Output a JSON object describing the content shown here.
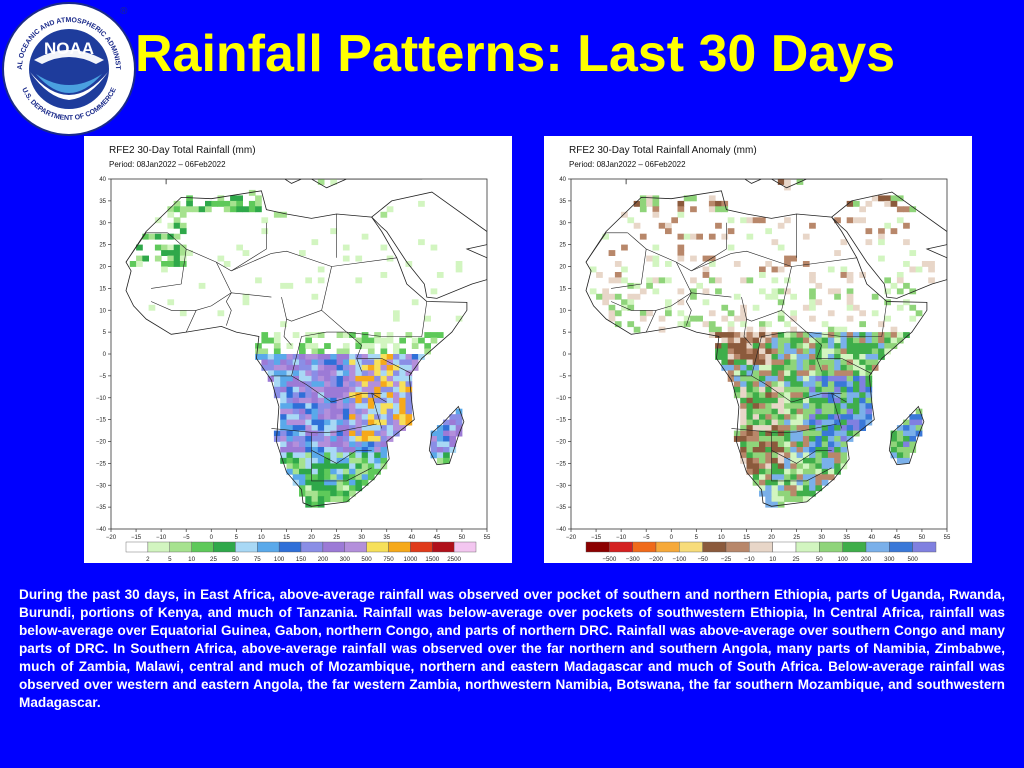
{
  "header": {
    "title": "Rainfall Patterns: Last 30 Days",
    "logo": {
      "center_text": "NOAA",
      "ring_text_top": "NATIONAL OCEANIC AND ATMOSPHERIC ADMINISTRATION",
      "ring_text_bottom": "U.S. DEPARTMENT OF COMMERCE",
      "registered_mark": "®"
    }
  },
  "maps": [
    {
      "title": "RFE2 30-Day Total Rainfall (mm)",
      "period": "Period: 08Jan2022 – 06Feb2022",
      "lat_ticks": [
        "40",
        "35",
        "30",
        "25",
        "20",
        "15",
        "10",
        "5",
        "0",
        "−5",
        "−10",
        "−15",
        "−20",
        "−25",
        "−30",
        "−35",
        "−40"
      ],
      "lon_ticks": [
        "−20",
        "−15",
        "−10",
        "−5",
        "0",
        "5",
        "10",
        "15",
        "20",
        "25",
        "30",
        "35",
        "40",
        "45",
        "50",
        "55"
      ],
      "legend_labels": [
        "2",
        "5",
        "10",
        "25",
        "50",
        "75",
        "100",
        "150",
        "200",
        "300",
        "500",
        "750",
        "1000",
        "1500",
        "2500"
      ],
      "legend_colors": [
        "#ffffff",
        "#d2f5c0",
        "#a6e28f",
        "#5ec95a",
        "#2fa84a",
        "#a8d8f5",
        "#5aa9ea",
        "#2f6fd8",
        "#8a8ee6",
        "#9c7ad6",
        "#b38fdb",
        "#f6e05a",
        "#f6a91a",
        "#e03a1a",
        "#b0101a",
        "#f3c6f0"
      ]
    },
    {
      "title": "RFE2 30-Day Total Rainfall Anomaly (mm)",
      "period": "Period: 08Jan2022 – 06Feb2022",
      "lat_ticks": [
        "40",
        "35",
        "30",
        "25",
        "20",
        "15",
        "10",
        "5",
        "0",
        "−5",
        "−10",
        "−15",
        "−20",
        "−25",
        "−30",
        "−35",
        "−40"
      ],
      "lon_ticks": [
        "−20",
        "−15",
        "−10",
        "−5",
        "0",
        "5",
        "10",
        "15",
        "20",
        "25",
        "30",
        "35",
        "40",
        "45",
        "50",
        "55"
      ],
      "legend_labels": [
        "−500",
        "−300",
        "−200",
        "−100",
        "−50",
        "−25",
        "−10",
        "10",
        "25",
        "50",
        "100",
        "200",
        "300",
        "500"
      ],
      "legend_colors": [
        "#8b0000",
        "#d42020",
        "#f06a1a",
        "#f6a93a",
        "#f7dc7a",
        "#8b5a3c",
        "#b8876a",
        "#e8d6c8",
        "#ffffff",
        "#d2f5c0",
        "#8fd47a",
        "#3fae4a",
        "#7ab0ea",
        "#3a78d8",
        "#8080e0"
      ]
    }
  ],
  "description": "During the past 30 days, in East Africa, above-average rainfall was observed over pocket of southern and northern Ethiopia, parts of Uganda, Rwanda, Burundi, portions of Kenya, and much of Tanzania. Rainfall was below-average over pockets of southwestern Ethiopia, In Central Africa, rainfall was below-average over Equatorial Guinea, Gabon, northern Congo, and parts of northern DRC. Rainfall was above-average over southern Congo and many parts of DRC. In Southern Africa, above-average rainfall was observed over the far northern and southern Angola, many parts of Namibia, Zimbabwe, much of Zambia, Malawi, central and much of Mozambique, northern and eastern Madagascar and  much of South Africa. Below-average rainfall was observed over western and eastern Angola, the far western Zambia, northwestern  Namibia, Botswana, the far southern Mozambique, and southwestern Madagascar."
}
